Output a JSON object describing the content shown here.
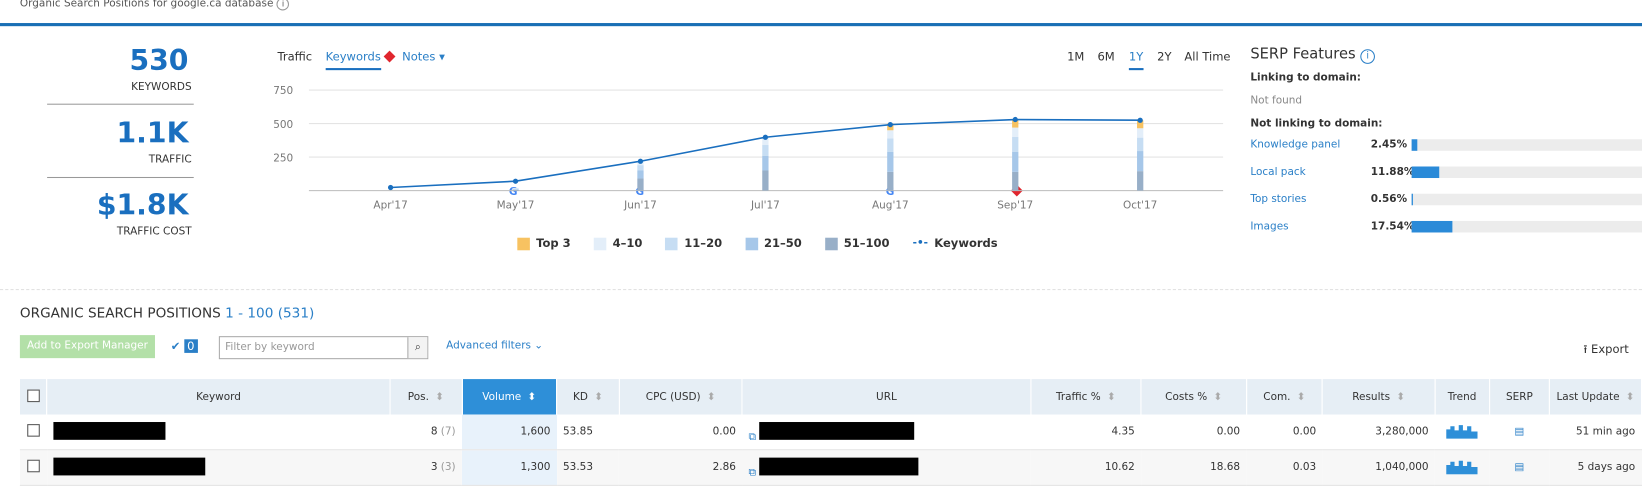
{
  "header": {
    "title": "Organic Search Positions for google.ca database"
  },
  "summary": [
    {
      "value": "530",
      "label": "KEYWORDS"
    },
    {
      "value": "1.1K",
      "label": "TRAFFIC"
    },
    {
      "value": "$1.8K",
      "label": "TRAFFIC COST"
    }
  ],
  "chart_tabs": [
    "Traffic",
    "Keywords",
    "Notes"
  ],
  "periods": [
    "1M",
    "6M",
    "1Y",
    "2Y",
    "All Time"
  ],
  "chart_data": {
    "type": "bar",
    "categories": [
      "Apr'17",
      "May'17",
      "Jun'17",
      "Jul'17",
      "Aug'17",
      "Sep'17",
      "Oct'17"
    ],
    "ylim": [
      0,
      750
    ],
    "yticks": [
      250,
      500,
      750
    ],
    "grid": true,
    "series": [
      {
        "name": "Top 3",
        "color": "#f7c261",
        "values": [
          0,
          0,
          0,
          0,
          50,
          60,
          60
        ]
      },
      {
        "name": "4–10",
        "color": "#e3eef9",
        "values": [
          0,
          5,
          30,
          60,
          60,
          70,
          70
        ]
      },
      {
        "name": "11–20",
        "color": "#c6ddf3",
        "values": [
          0,
          5,
          40,
          80,
          100,
          110,
          100
        ]
      },
      {
        "name": "21–50",
        "color": "#a6c7e9",
        "values": [
          0,
          5,
          60,
          110,
          150,
          150,
          150
        ]
      },
      {
        "name": "51–100",
        "color": "#98afc8",
        "values": [
          0,
          5,
          90,
          150,
          140,
          140,
          145
        ]
      },
      {
        "name": "Keywords",
        "type": "line",
        "color": "#1a6fbf",
        "values": [
          23,
          70,
          219,
          398,
          492,
          530,
          525
        ]
      }
    ]
  },
  "serp": {
    "title": "SERP Features",
    "linking_label": "Linking to domain:",
    "linking_value": "Not found",
    "not_linking_label": "Not linking to domain:",
    "xlim": [
      0,
      100
    ],
    "color": "#2a8ad8",
    "items": [
      {
        "name": "Knowledge panel",
        "value": 2.45,
        "value_label": "2.45%"
      },
      {
        "name": "Local pack",
        "value": 11.88,
        "value_label": "11.88%"
      },
      {
        "name": "Top stories",
        "value": 0.56,
        "value_label": "0.56%"
      },
      {
        "name": "Images",
        "value": 17.54,
        "value_label": "17.54%"
      }
    ]
  },
  "positions": {
    "title": "ORGANIC SEARCH POSITIONS",
    "range": "1 - 100 (531)",
    "export_manager": "Add to Export Manager",
    "selected": "0",
    "filter_placeholder": "Filter by keyword",
    "advanced_filters": "Advanced filters",
    "export": "Export"
  },
  "table": {
    "columns": [
      "Keyword",
      "Pos.",
      "Volume",
      "KD",
      "CPC (USD)",
      "URL",
      "Traffic %",
      "Costs %",
      "Com.",
      "Results",
      "Trend",
      "SERP",
      "Last Update"
    ],
    "rows": [
      {
        "pos": "8",
        "pos_prev": "(7)",
        "volume": "1,600",
        "kd": "53.85",
        "cpc": "0.00",
        "traffic": "4.35",
        "costs": "0.00",
        "com": "0.00",
        "results": "3,280,000",
        "last_update": "51 min ago"
      },
      {
        "pos": "3",
        "pos_prev": "(3)",
        "volume": "1,300",
        "kd": "53.53",
        "cpc": "2.86",
        "traffic": "10.62",
        "costs": "18.68",
        "com": "0.03",
        "results": "1,040,000",
        "last_update": "5 days ago"
      }
    ]
  }
}
